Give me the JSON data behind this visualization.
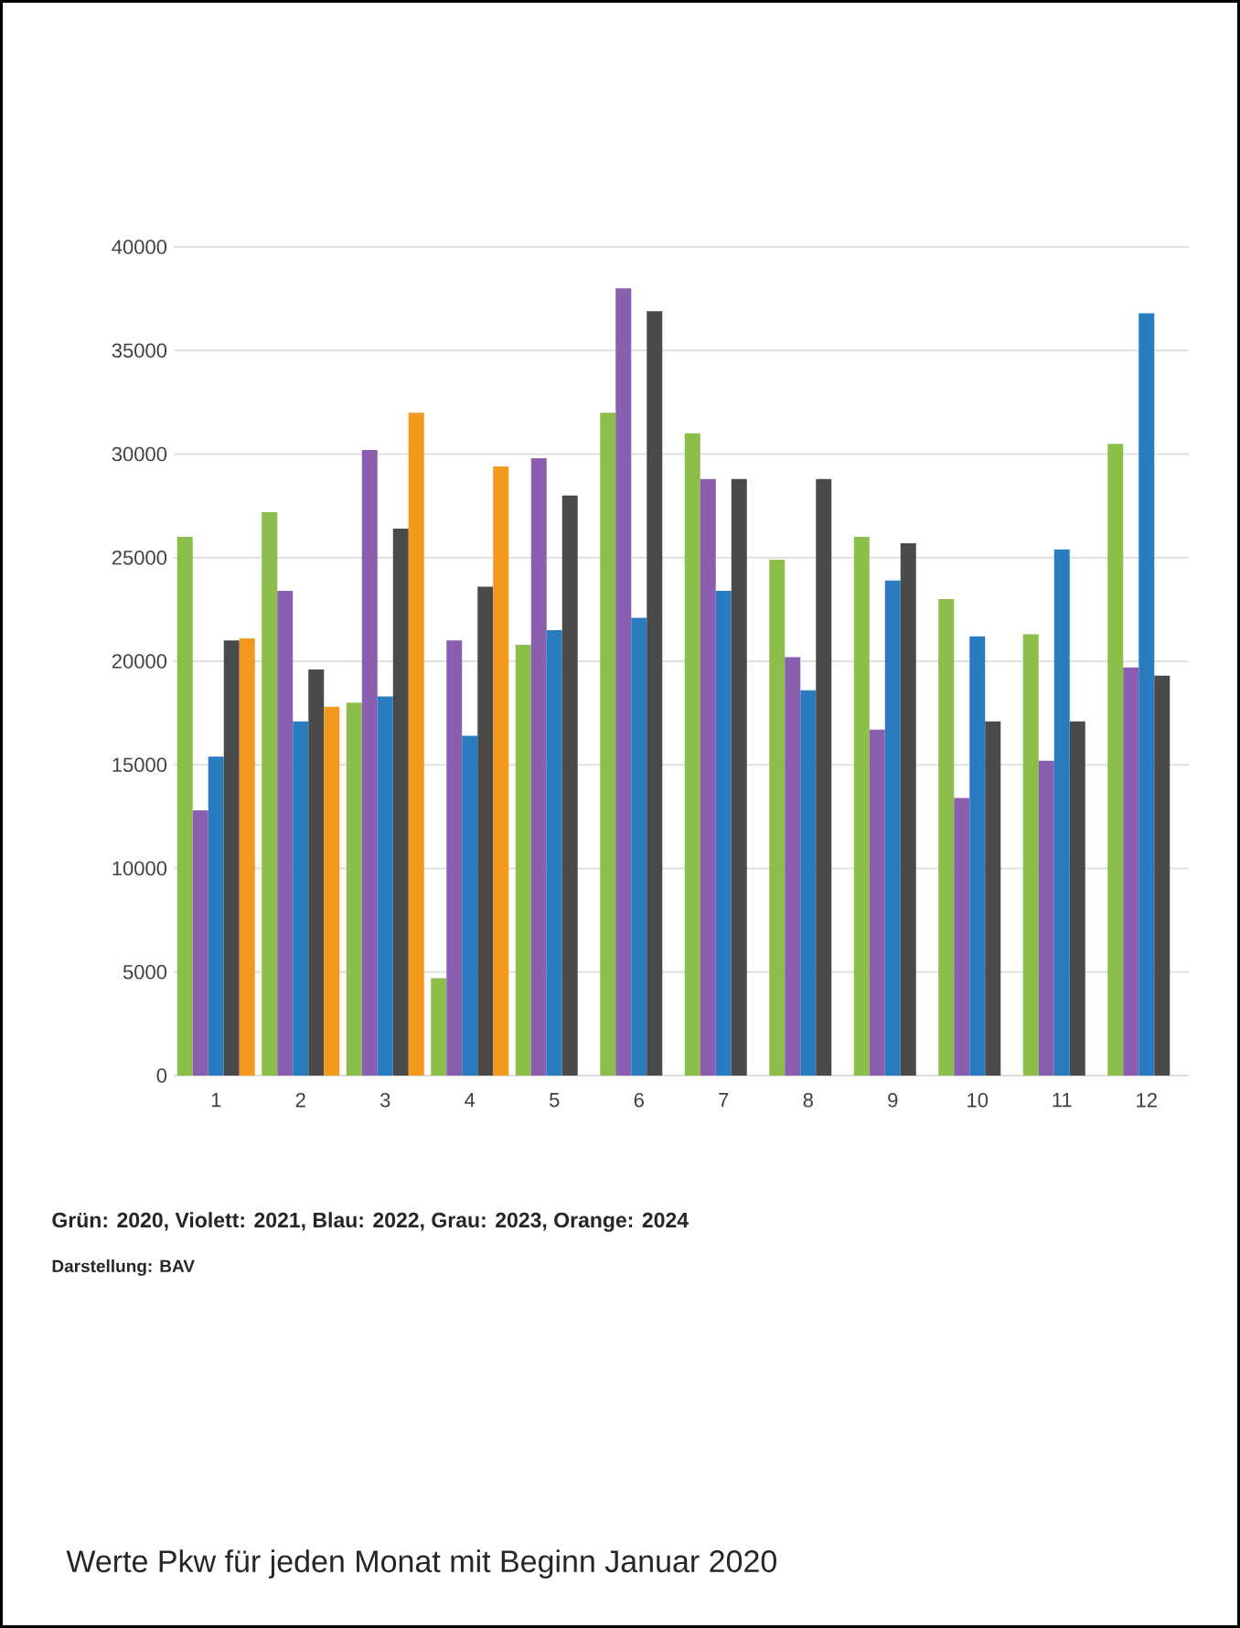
{
  "chart_data": {
    "type": "bar",
    "categories": [
      "1",
      "2",
      "3",
      "4",
      "5",
      "6",
      "7",
      "8",
      "9",
      "10",
      "11",
      "12"
    ],
    "series": [
      {
        "color": "#8cbf4a",
        "values": [
          26000,
          27200,
          18000,
          4700,
          20800,
          32000,
          31000,
          24900,
          26000,
          23000,
          21300,
          30500
        ]
      },
      {
        "color": "#8a5fb0",
        "values": [
          12800,
          23400,
          30200,
          21000,
          29800,
          38000,
          28800,
          20200,
          16700,
          13400,
          15200,
          19700
        ]
      },
      {
        "color": "#2a7cc0",
        "values": [
          15400,
          17100,
          18300,
          16400,
          21500,
          22100,
          23400,
          18600,
          23900,
          21200,
          25400,
          36800
        ]
      },
      {
        "color": "#4a4a4a",
        "values": [
          21000,
          19600,
          26400,
          23600,
          28000,
          36900,
          28800,
          28800,
          25700,
          17100,
          17100,
          19300
        ]
      },
      {
        "color": "#f39a1e",
        "values": [
          21100,
          17800,
          32000,
          29400,
          null,
          null,
          null,
          null,
          null,
          null,
          null,
          null
        ]
      }
    ],
    "ylim": [
      0,
      40000
    ],
    "yticks": [
      0,
      5000,
      10000,
      15000,
      20000,
      25000,
      30000,
      35000,
      40000
    ],
    "grid": "y",
    "annotations": [
      "Grün: 2020, Violett: 2021, Blau: 2022, Grau: 2023, Orange: 2024",
      "Darstellung: BAV",
      "Werte Pkw für jeden Monat mit Beginn Januar 2020"
    ]
  }
}
